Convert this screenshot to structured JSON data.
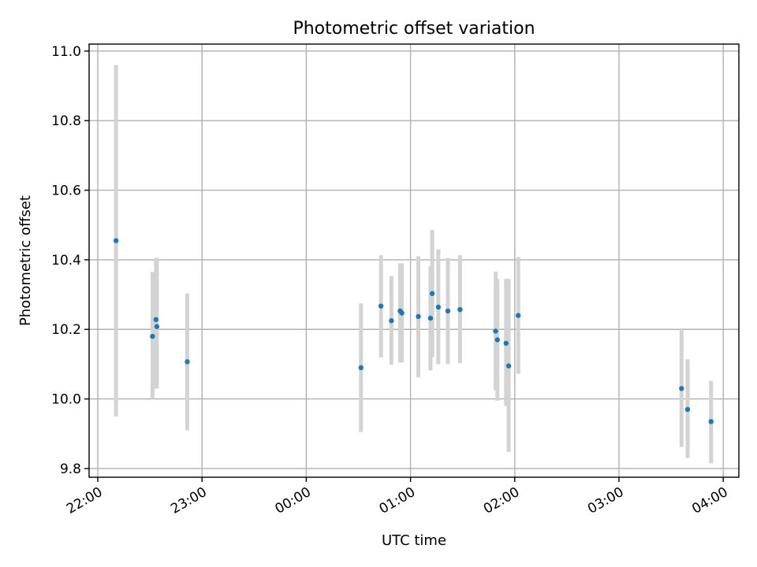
{
  "chart_data": {
    "type": "scatter",
    "title": "Photometric offset variation",
    "xlabel": "UTC time",
    "ylabel": "Photometric offset",
    "x_unit": "time of day (UTC)",
    "xlim": [
      "21:55",
      "04:09"
    ],
    "ylim": [
      9.775,
      11.02
    ],
    "x_ticks": [
      "22:00",
      "23:00",
      "00:00",
      "01:00",
      "02:00",
      "03:00",
      "04:00"
    ],
    "y_ticks": [
      "9.8",
      "10.0",
      "10.2",
      "10.4",
      "10.6",
      "10.8",
      "11.0"
    ],
    "grid": true,
    "colors": {
      "point": "#1f77b4",
      "errorbar": "#d3d3d3"
    },
    "series": [
      {
        "points": [
          {
            "x": "22:10.5",
            "y": 10.455,
            "err_low": 9.95,
            "err_high": 10.96
          },
          {
            "x": "22:31.5",
            "y": 10.18,
            "err_low": 10.0,
            "err_high": 10.365
          },
          {
            "x": "22:33.5",
            "y": 10.228,
            "err_low": 10.03,
            "err_high": 10.405
          },
          {
            "x": "22:34.0",
            "y": 10.208,
            "err_low": 10.03,
            "err_high": 10.405
          },
          {
            "x": "22:51.5",
            "y": 10.107,
            "err_low": 9.91,
            "err_high": 10.303
          },
          {
            "x": "00:31.5",
            "y": 10.09,
            "err_low": 9.905,
            "err_high": 10.275
          },
          {
            "x": "00:43.0",
            "y": 10.267,
            "err_low": 10.12,
            "err_high": 10.413
          },
          {
            "x": "00:49.0",
            "y": 10.225,
            "err_low": 10.098,
            "err_high": 10.353
          },
          {
            "x": "00:54.0",
            "y": 10.253,
            "err_low": 10.105,
            "err_high": 10.39
          },
          {
            "x": "00:55.0",
            "y": 10.247,
            "err_low": 10.105,
            "err_high": 10.39
          },
          {
            "x": "01:04.5",
            "y": 10.237,
            "err_low": 10.062,
            "err_high": 10.41
          },
          {
            "x": "01:11.5",
            "y": 10.232,
            "err_low": 10.082,
            "err_high": 10.382
          },
          {
            "x": "01:12.5",
            "y": 10.303,
            "err_low": 10.12,
            "err_high": 10.486
          },
          {
            "x": "01:16.0",
            "y": 10.264,
            "err_low": 10.1,
            "err_high": 10.43
          },
          {
            "x": "01:21.5",
            "y": 10.253,
            "err_low": 10.1,
            "err_high": 10.405
          },
          {
            "x": "01:28.5",
            "y": 10.257,
            "err_low": 10.103,
            "err_high": 10.413
          },
          {
            "x": "01:49.0",
            "y": 10.195,
            "err_low": 10.025,
            "err_high": 10.366
          },
          {
            "x": "01:50.0",
            "y": 10.17,
            "err_low": 9.995,
            "err_high": 10.345
          },
          {
            "x": "01:55.0",
            "y": 10.16,
            "err_low": 9.98,
            "err_high": 10.345
          },
          {
            "x": "01:56.5",
            "y": 10.095,
            "err_low": 9.848,
            "err_high": 10.345
          },
          {
            "x": "02:02.0",
            "y": 10.24,
            "err_low": 10.072,
            "err_high": 10.408
          },
          {
            "x": "03:36.0",
            "y": 10.03,
            "err_low": 9.862,
            "err_high": 10.2
          },
          {
            "x": "03:39.5",
            "y": 9.97,
            "err_low": 9.83,
            "err_high": 10.114
          },
          {
            "x": "03:53.0",
            "y": 9.935,
            "err_low": 9.815,
            "err_high": 10.052
          }
        ]
      }
    ]
  }
}
